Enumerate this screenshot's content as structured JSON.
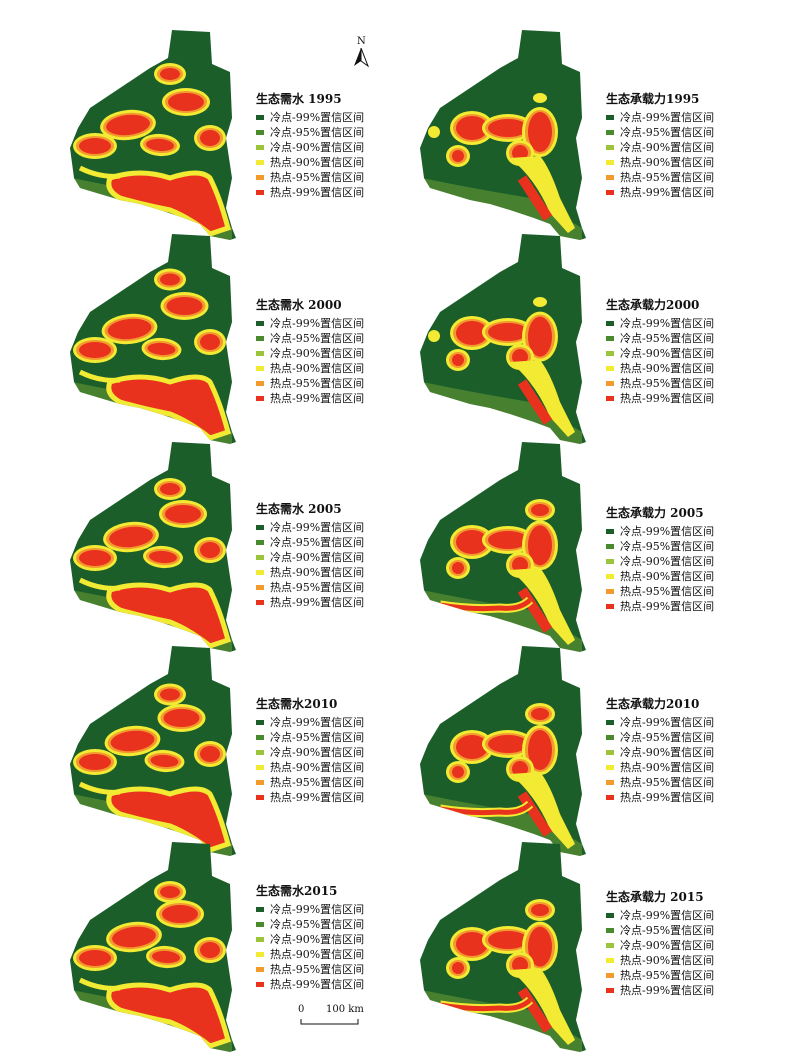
{
  "north_label": "N",
  "scale": {
    "zero": "0",
    "distance": "100 km"
  },
  "colors": {
    "cold99": "#1b5e2a",
    "cold95": "#4a8a2e",
    "cold90": "#9cc43a",
    "hot90": "#f2ea33",
    "hot95": "#f39a2e",
    "hot99": "#e8321e"
  },
  "legend_items": [
    {
      "label": "冷点-99%置信区间",
      "color": "#1b5e2a"
    },
    {
      "label": "冷点-95%置信区间",
      "color": "#4a8a2e"
    },
    {
      "label": "冷点-90%置信区间",
      "color": "#9cc43a"
    },
    {
      "label": "热点-90%置信区间",
      "color": "#f2ea33"
    },
    {
      "label": "热点-95%置信区间",
      "color": "#f39a2e"
    },
    {
      "label": "热点-99%置信区间",
      "color": "#e8321e"
    }
  ],
  "panels": [
    {
      "id": "demand-1995",
      "title": "生态需水 1995",
      "type": "demand",
      "year": "1995"
    },
    {
      "id": "capacity-1995",
      "title": "生态承载力1995",
      "type": "capacity",
      "year": "1995"
    },
    {
      "id": "demand-2000",
      "title": "生态需水 2000",
      "type": "demand",
      "year": "2000"
    },
    {
      "id": "capacity-2000",
      "title": "生态承载力2000",
      "type": "capacity",
      "year": "2000"
    },
    {
      "id": "demand-2005",
      "title": "生态需水 2005",
      "type": "demand",
      "year": "2005"
    },
    {
      "id": "capacity-2005",
      "title": "生态承载力 2005",
      "type": "capacity",
      "year": "2005"
    },
    {
      "id": "demand-2010",
      "title": "生态需水2010",
      "type": "demand",
      "year": "2010"
    },
    {
      "id": "capacity-2010",
      "title": "生态承载力2010",
      "type": "capacity",
      "year": "2010"
    },
    {
      "id": "demand-2015",
      "title": "生态需水2015",
      "type": "demand",
      "year": "2015"
    },
    {
      "id": "capacity-2015",
      "title": "生态承载力 2015",
      "type": "capacity",
      "year": "2015"
    }
  ]
}
